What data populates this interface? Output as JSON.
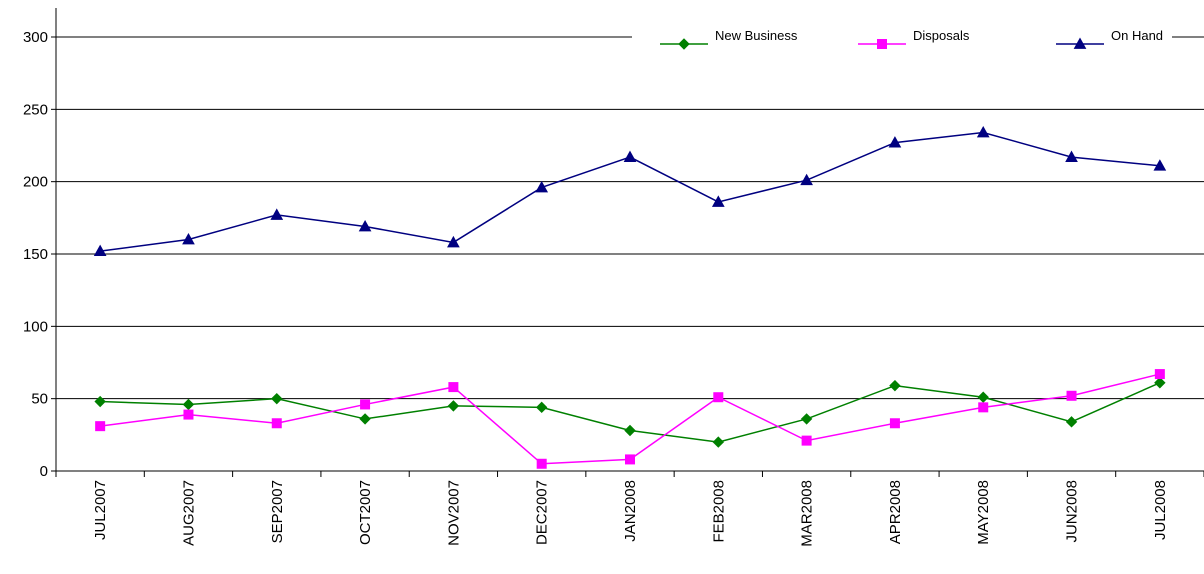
{
  "chart_data": {
    "type": "line",
    "categories": [
      "JUL2007",
      "AUG2007",
      "SEP2007",
      "OCT2007",
      "NOV2007",
      "DEC2007",
      "JAN2008",
      "FEB2008",
      "MAR2008",
      "APR2008",
      "MAY2008",
      "JUN2008",
      "JUL2008"
    ],
    "ylim": [
      0,
      300
    ],
    "yticks": [
      0,
      50,
      100,
      150,
      200,
      250,
      300
    ],
    "grid": true,
    "legend_position": "top-right",
    "series": [
      {
        "name": "New Business",
        "color": "#008000",
        "marker": "diamond",
        "values": [
          48,
          46,
          50,
          36,
          45,
          44,
          28,
          20,
          36,
          59,
          51,
          34,
          61
        ]
      },
      {
        "name": "Disposals",
        "color": "#FF00FF",
        "marker": "square",
        "values": [
          31,
          39,
          33,
          46,
          58,
          5,
          8,
          51,
          21,
          33,
          44,
          52,
          67
        ]
      },
      {
        "name": "On Hand",
        "color": "#000080",
        "marker": "triangle",
        "values": [
          152,
          160,
          177,
          169,
          158,
          196,
          217,
          186,
          201,
          227,
          234,
          217,
          211
        ]
      }
    ]
  }
}
